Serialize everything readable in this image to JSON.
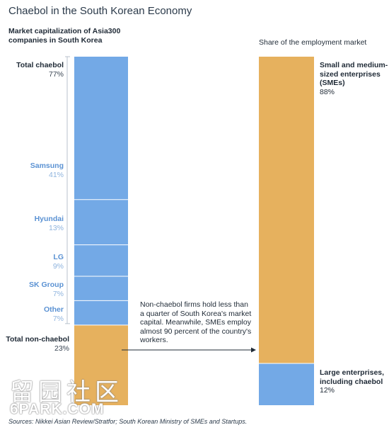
{
  "title": "Chaebol in the South Korean Economy",
  "source": "Sources: Nikkei Asian Review/Stratfor; South Korean Ministry of SMEs and Startups.",
  "watermark": {
    "line1": "留园社区",
    "line2": "6PARK.COM"
  },
  "annotation": "Non-chaebol firms hold less than a quarter of South Korea's market capital. Meanwhile, SMEs employ almost 90 percent of the country's workers.",
  "colors": {
    "chaebol": "#73a9e6",
    "non_chaebol": "#e6b15e",
    "bracket": "#b8c2cc",
    "divider": "#ffffff"
  },
  "chart_data": [
    {
      "type": "bar",
      "stacked": true,
      "title": "Market capitalization of Asia300 companies in South Korea",
      "unit": "%",
      "total_chaebol": {
        "label": "Total chaebol",
        "value_label": "77%",
        "value": 77
      },
      "total_non_chaebol": {
        "label": "Total non-chaebol",
        "value_label": "23%",
        "value": 23
      },
      "segments": [
        {
          "name": "Samsung",
          "value_label": "41%",
          "value": 41,
          "group": "chaebol"
        },
        {
          "name": "Hyundai",
          "value_label": "13%",
          "value": 13,
          "group": "chaebol"
        },
        {
          "name": "LG",
          "value_label": "9%",
          "value": 9,
          "group": "chaebol"
        },
        {
          "name": "SK Group",
          "value_label": "7%",
          "value": 7,
          "group": "chaebol"
        },
        {
          "name": "Other",
          "value_label": "7%",
          "value": 7,
          "group": "chaebol"
        },
        {
          "name": "Total non-chaebol",
          "value_label": "23%",
          "value": 23,
          "group": "non_chaebol"
        }
      ]
    },
    {
      "type": "bar",
      "stacked": true,
      "title": "Share of the employment market",
      "unit": "%",
      "segments": [
        {
          "name": "Small and medium-sized enterprises (SMEs)",
          "value_label": "88%",
          "value": 88,
          "group": "non_chaebol"
        },
        {
          "name": "Large enterprises, including chaebol",
          "value_label": "12%",
          "value": 12,
          "group": "chaebol"
        }
      ]
    }
  ]
}
